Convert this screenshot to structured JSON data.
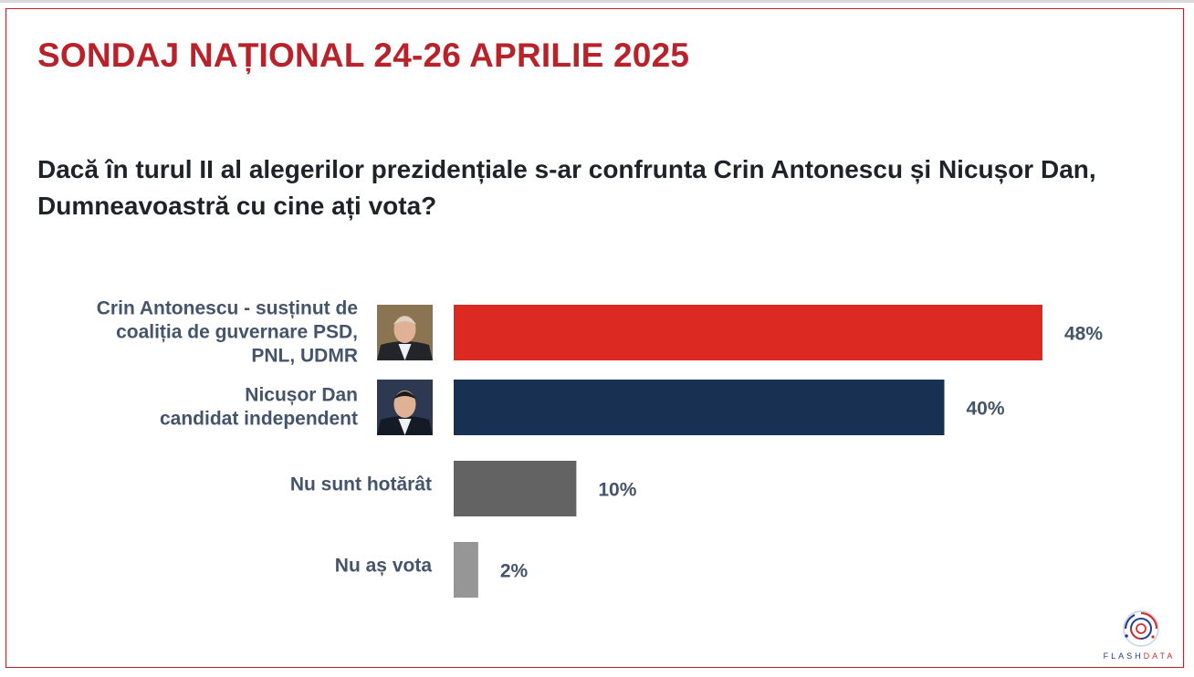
{
  "header": {
    "title": "SONDAJ NAȚIONAL 24-26 APRILIE 2025",
    "question": "Dacă în turul II al alegerilor prezidențiale s-ar confrunta Crin Antonescu și Nicușor Dan, Dumneavoastră cu cine ați vota?"
  },
  "brand": {
    "logo_text_part1": "FLASH",
    "logo_text_part2": "DATA",
    "logo_icon": "swirl-logo-icon"
  },
  "chart_data": {
    "type": "bar",
    "orientation": "horizontal",
    "categories": [
      [
        "Crin Antonescu - susținut de",
        "coaliția de guvernare PSD,",
        "PNL, UDMR"
      ],
      [
        "Nicușor Dan",
        "candidat independent"
      ],
      [
        "Nu sunt hotărât"
      ],
      [
        "Nu aș vota"
      ]
    ],
    "values": [
      48,
      40,
      10,
      2
    ],
    "value_labels": [
      "48%",
      "40%",
      "10%",
      "2%"
    ],
    "colors": [
      "#dc2a22",
      "#183153",
      "#636363",
      "#969696"
    ],
    "photos": [
      "candidate-photo-antonescu",
      "candidate-photo-dan",
      null,
      null
    ],
    "xlim": [
      0,
      50
    ],
    "grid": false,
    "legend": "none"
  }
}
